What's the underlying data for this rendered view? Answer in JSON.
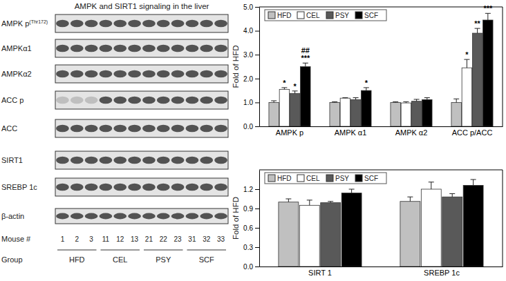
{
  "chart_data": [
    {
      "type": "bar",
      "y_label": "Fold of HFD",
      "categories": [
        "AMPK p",
        "AMPK α1",
        "AMPK α2",
        "ACC p/ACC"
      ],
      "series": [
        {
          "name": "HFD",
          "color": "#c0c0c0",
          "values": [
            1.0,
            1.0,
            1.0,
            1.0
          ],
          "errors": [
            0.07,
            0.03,
            0.03,
            0.15
          ]
        },
        {
          "name": "CEL",
          "color": "#ffffff",
          "values": [
            1.55,
            1.18,
            0.98,
            2.45
          ],
          "errors": [
            0.07,
            0.02,
            0.05,
            0.35
          ]
        },
        {
          "name": "PSY",
          "color": "#595959",
          "values": [
            1.38,
            1.12,
            1.05,
            3.9
          ],
          "errors": [
            0.1,
            0.08,
            0.08,
            0.2
          ]
        },
        {
          "name": "SCF",
          "color": "#000000",
          "values": [
            2.5,
            1.5,
            1.12,
            4.45
          ],
          "errors": [
            0.15,
            0.12,
            0.08,
            0.28
          ]
        }
      ],
      "annotations": [
        {
          "series": 1,
          "category": 0,
          "text": "*"
        },
        {
          "series": 2,
          "category": 0,
          "text": "*"
        },
        {
          "series": 3,
          "category": 0,
          "text": "***"
        },
        {
          "series": 3,
          "category": 0,
          "text": "##"
        },
        {
          "series": 3,
          "category": 1,
          "text": "*"
        },
        {
          "series": 1,
          "category": 3,
          "text": "*"
        },
        {
          "series": 2,
          "category": 3,
          "text": "**"
        },
        {
          "series": 3,
          "category": 3,
          "text": "***"
        }
      ],
      "ylim": [
        0,
        5
      ],
      "yticks": [
        {
          "value": 0,
          "label": "0.0"
        },
        {
          "value": 1,
          "label": "1.0"
        },
        {
          "value": 2,
          "label": "2.0"
        },
        {
          "value": 3,
          "label": "3.0"
        },
        {
          "value": 4,
          "label": "4.0"
        },
        {
          "value": 5,
          "label": "5.0"
        }
      ],
      "legend": "top-left",
      "grid": false
    },
    {
      "type": "bar",
      "y_label": "Fold of HFD",
      "categories": [
        "SIRT 1",
        "SREBP 1c"
      ],
      "series": [
        {
          "name": "HFD",
          "color": "#c0c0c0",
          "values": [
            1.0,
            1.01
          ],
          "errors": [
            0.05,
            0.07
          ]
        },
        {
          "name": "CEL",
          "color": "#ffffff",
          "values": [
            0.95,
            1.2
          ],
          "errors": [
            0.08,
            0.11
          ]
        },
        {
          "name": "PSY",
          "color": "#595959",
          "values": [
            0.99,
            1.08
          ],
          "errors": [
            0.02,
            0.05
          ]
        },
        {
          "name": "SCF",
          "color": "#000000",
          "values": [
            1.14,
            1.26
          ],
          "errors": [
            0.06,
            0.09
          ]
        }
      ],
      "annotations": [],
      "ylim": [
        0,
        1.5
      ],
      "yticks": [
        {
          "value": 0,
          "label": "0.0"
        },
        {
          "value": 0.3,
          "label": "0.3"
        },
        {
          "value": 0.6,
          "label": "0.6"
        },
        {
          "value": 0.9,
          "label": "0.9"
        },
        {
          "value": 1.2,
          "label": "1.2"
        }
      ],
      "legend": "top-left",
      "grid": false
    }
  ],
  "blot": {
    "title": "AMPK and SIRT1 signaling in the liver",
    "rows": [
      {
        "label": "AMPK p",
        "superscript": "(Thr172)"
      },
      {
        "label": "AMPKα1"
      },
      {
        "label": "AMPKα2"
      },
      {
        "label": "ACC p"
      },
      {
        "label": "ACC"
      },
      {
        "label": "SIRT1"
      },
      {
        "label": "SREBP 1c"
      },
      {
        "label": "β-actin"
      }
    ],
    "mouse_label": "Mouse #",
    "mice": [
      1,
      2,
      3,
      11,
      12,
      13,
      21,
      22,
      23,
      31,
      32,
      33
    ],
    "group_label": "Group",
    "groups": [
      "HFD",
      "CEL",
      "PSY",
      "SCF"
    ]
  }
}
